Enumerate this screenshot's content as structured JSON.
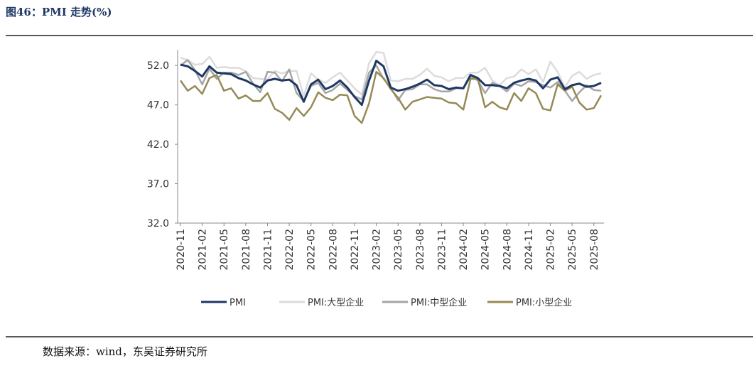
{
  "chart_data": {
    "type": "line",
    "title": "图46：PMI 走势(%)",
    "source": "数据来源：wind，东吴证券研究所",
    "categories": [
      "2020-11",
      null,
      null,
      "2021-02",
      null,
      null,
      "2021-05",
      null,
      null,
      "2021-08",
      null,
      null,
      "2021-11",
      null,
      null,
      "2022-02",
      null,
      null,
      "2022-05",
      null,
      null,
      "2022-08",
      null,
      null,
      "2022-11",
      null,
      null,
      "2023-02",
      null,
      null,
      "2023-05",
      null,
      null,
      "2023-08",
      null,
      null,
      "2023-11",
      null,
      null,
      "2024-02",
      null,
      null,
      "2024-05",
      null,
      null,
      "2024-08",
      null,
      null,
      "2024-11",
      null,
      null,
      "2025-02",
      null,
      null,
      "2025-05",
      null,
      null,
      "2025-08",
      null
    ],
    "ylim": [
      32,
      54
    ],
    "yticks": [
      {
        "value": 32,
        "label": "32.0"
      },
      {
        "value": 37,
        "label": "37.0"
      },
      {
        "value": 42,
        "label": "42.0"
      },
      {
        "value": 47,
        "label": "47.0"
      },
      {
        "value": 52,
        "label": "52.0"
      }
    ],
    "legend": "bottom",
    "series": [
      {
        "name": "PMI",
        "color": "#1f3864",
        "values": [
          52.1,
          51.9,
          51.3,
          50.6,
          51.9,
          51.1,
          51.0,
          50.9,
          50.4,
          50.1,
          49.6,
          49.2,
          50.1,
          50.3,
          50.1,
          50.2,
          49.5,
          47.4,
          49.6,
          50.2,
          49.0,
          49.4,
          50.1,
          49.2,
          48.0,
          47.0,
          50.1,
          52.6,
          51.9,
          49.2,
          48.8,
          49.0,
          49.3,
          49.7,
          50.2,
          49.5,
          49.4,
          49.0,
          49.2,
          49.1,
          50.8,
          50.4,
          49.5,
          49.5,
          49.4,
          49.1,
          49.8,
          50.1,
          50.3,
          50.1,
          49.1,
          50.2,
          50.5,
          49.0,
          49.5,
          49.7,
          49.3,
          49.4,
          49.8
        ]
      },
      {
        "name": "PMI:大型企业",
        "color": "#dcdcdc",
        "values": [
          53.0,
          52.7,
          52.1,
          52.2,
          53.1,
          51.7,
          51.8,
          51.7,
          51.7,
          51.3,
          50.4,
          50.3,
          50.2,
          51.3,
          51.0,
          51.3,
          51.3,
          48.1,
          51.0,
          50.2,
          49.8,
          50.5,
          51.1,
          50.1,
          49.1,
          48.3,
          52.3,
          53.7,
          53.6,
          50.1,
          50.0,
          50.3,
          50.3,
          50.8,
          51.6,
          50.7,
          50.5,
          50.0,
          50.4,
          50.4,
          51.1,
          51.1,
          51.7,
          50.1,
          49.5,
          50.4,
          50.6,
          51.5,
          50.9,
          51.5,
          49.9,
          52.5,
          51.2,
          49.2,
          50.7,
          51.2,
          50.3,
          50.8,
          51.0
        ]
      },
      {
        "name": "PMI:中型企业",
        "color": "#a6a6a6",
        "values": [
          52.0,
          52.7,
          51.4,
          49.6,
          51.6,
          50.3,
          51.1,
          51.1,
          50.8,
          51.2,
          49.7,
          48.6,
          51.2,
          51.1,
          50.0,
          51.5,
          48.5,
          47.5,
          49.4,
          49.8,
          48.5,
          48.9,
          49.7,
          48.9,
          48.1,
          47.7,
          51.1,
          52.0,
          50.3,
          49.2,
          47.6,
          48.9,
          49.0,
          49.6,
          49.6,
          49.0,
          48.7,
          48.7,
          49.1,
          49.1,
          50.6,
          50.1,
          48.5,
          49.8,
          49.4,
          48.7,
          49.7,
          49.4,
          50.0,
          49.9,
          49.5,
          49.2,
          49.9,
          48.8,
          47.5,
          48.6,
          49.5,
          48.9,
          48.8
        ]
      },
      {
        "name": "PMI:小型企业",
        "color": "#958a55",
        "values": [
          50.1,
          48.8,
          49.4,
          48.4,
          50.4,
          50.8,
          48.8,
          49.1,
          47.8,
          48.2,
          47.5,
          47.5,
          48.5,
          46.5,
          46.0,
          45.1,
          46.6,
          45.6,
          46.7,
          48.6,
          47.9,
          47.6,
          48.3,
          48.2,
          45.6,
          44.7,
          47.2,
          51.2,
          50.4,
          49.0,
          47.9,
          46.4,
          47.4,
          47.7,
          48.0,
          47.9,
          47.8,
          47.3,
          47.2,
          46.4,
          50.3,
          50.3,
          46.7,
          47.4,
          46.7,
          46.4,
          48.5,
          47.5,
          49.1,
          48.5,
          46.5,
          46.3,
          49.6,
          48.8,
          49.3,
          47.3,
          46.4,
          46.6,
          48.2
        ]
      }
    ]
  }
}
